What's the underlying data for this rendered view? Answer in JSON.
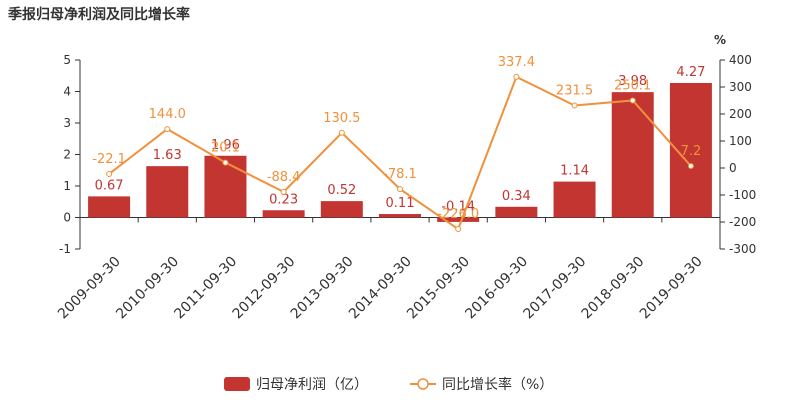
{
  "title": "季报归母净利润及同比增长率",
  "chart_data": {
    "type": "bar",
    "categories": [
      "2009-09-30",
      "2010-09-30",
      "2011-09-30",
      "2012-09-30",
      "2013-09-30",
      "2014-09-30",
      "2015-09-30",
      "2016-09-30",
      "2017-09-30",
      "2018-09-30",
      "2019-09-30"
    ],
    "series": [
      {
        "name": "归母净利润（亿）",
        "type": "bar",
        "axis": "left",
        "color": "#c23531",
        "values": [
          0.67,
          1.63,
          1.96,
          0.23,
          0.52,
          0.11,
          -0.14,
          0.34,
          1.14,
          3.98,
          4.27
        ],
        "labels": [
          "0.67",
          "1.63",
          "1.96",
          "0.23",
          "0.52",
          "0.11",
          "-0.14",
          "0.34",
          "1.14",
          "3.98",
          "4.27"
        ]
      },
      {
        "name": "同比增长率（%）",
        "type": "line",
        "axis": "right",
        "color": "#f0913c",
        "values": [
          -22.1,
          144.0,
          20.1,
          -88.4,
          130.5,
          -78.1,
          -226.0,
          337.4,
          231.5,
          250.1,
          7.2
        ],
        "labels": [
          "-22.1",
          "144.0",
          "20.1",
          "-88.4",
          "130.5",
          "-78.1",
          "-226.0",
          "337.4",
          "231.5",
          "250.1",
          "7.2"
        ]
      }
    ],
    "y_left": {
      "min": -1,
      "max": 5,
      "ticks": [
        "-1",
        "0",
        "1",
        "2",
        "3",
        "4",
        "5"
      ]
    },
    "y_right": {
      "min": -300,
      "max": 400,
      "ticks": [
        "-300",
        "-200",
        "-100",
        "0",
        "100",
        "200",
        "300",
        "400"
      ],
      "unit": "%"
    },
    "legend_position": "bottom-center",
    "grid": false
  }
}
